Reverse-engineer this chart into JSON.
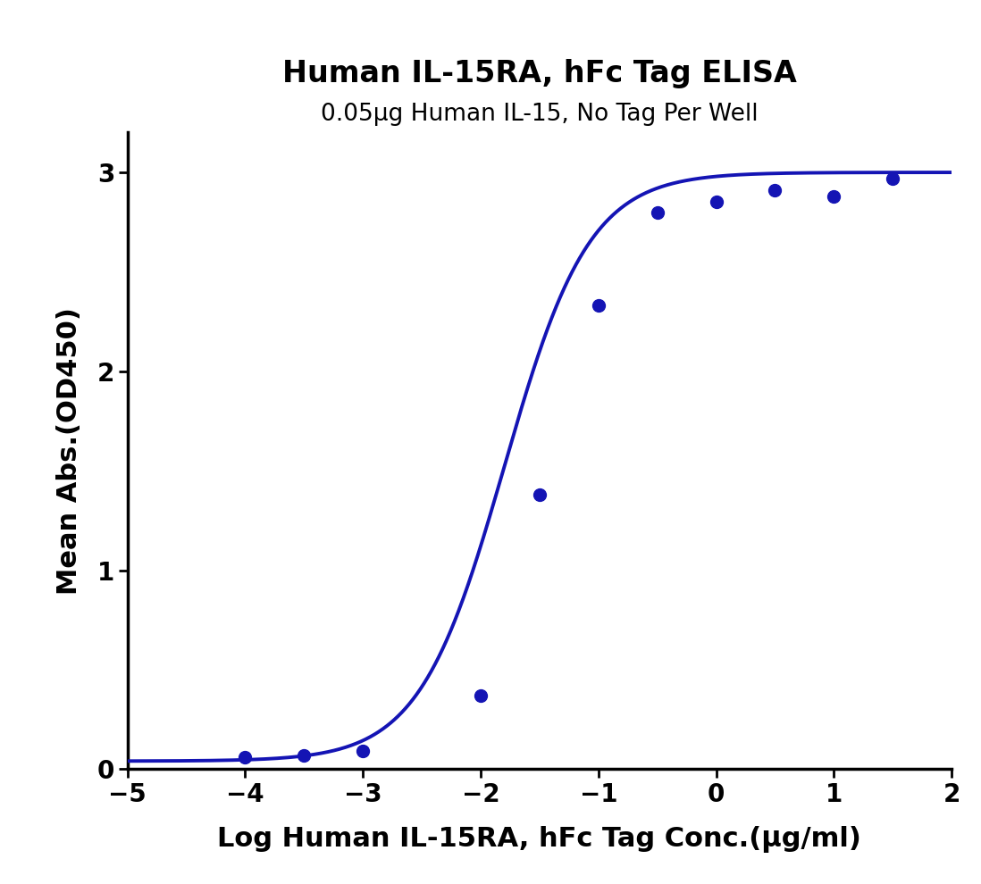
{
  "title_line1": "Human IL-15RA, hFc Tag ELISA",
  "title_line2": "0.05μg Human IL-15, No Tag Per Well",
  "xlabel": "Log Human IL-15RA, hFc Tag Conc.(μg/ml)",
  "ylabel": "Mean Abs.(OD450)",
  "xlim": [
    -5,
    2
  ],
  "ylim": [
    0,
    3.2
  ],
  "xticks": [
    -5,
    -4,
    -3,
    -2,
    -1,
    0,
    1,
    2
  ],
  "yticks": [
    0,
    1,
    2,
    3
  ],
  "data_x": [
    -4.0,
    -3.5,
    -3.0,
    -2.0,
    -1.5,
    -1.0,
    -0.5,
    0.0,
    0.5,
    1.0,
    1.5
  ],
  "data_y": [
    0.06,
    0.07,
    0.09,
    0.37,
    1.38,
    2.33,
    2.8,
    2.85,
    2.91,
    2.88,
    2.97
  ],
  "line_color": "#1414b4",
  "dot_color": "#1414b4",
  "dot_size": 100,
  "line_width": 2.8,
  "title_fontsize": 24,
  "subtitle_fontsize": 19,
  "axis_label_fontsize": 22,
  "tick_fontsize": 20,
  "background_color": "#ffffff",
  "ec50_init": -1.8,
  "hill_init": 1.2
}
